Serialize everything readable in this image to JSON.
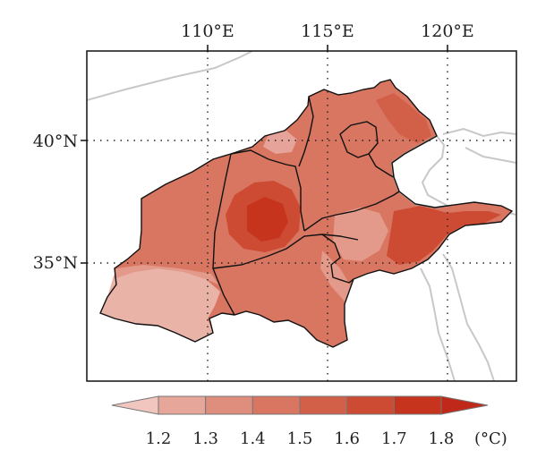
{
  "map": {
    "longitude_labels": [
      "110°E",
      "115°E",
      "120°E"
    ],
    "latitude_labels": [
      "40°N",
      "35°N"
    ],
    "background_color": "#ffffff",
    "coastline_color": "#c8c8c8",
    "boundary_color": "#111111"
  },
  "colorbar": {
    "tick_labels": [
      "1.2",
      "1.3",
      "1.4",
      "1.5",
      "1.6",
      "1.7",
      "1.8"
    ],
    "unit": "(°C)",
    "colors": [
      "#f0c6bf",
      "#e6a69a",
      "#df8d7c",
      "#d87661",
      "#d26049",
      "#cd4b33",
      "#c6341e",
      "#c0281a"
    ]
  }
}
